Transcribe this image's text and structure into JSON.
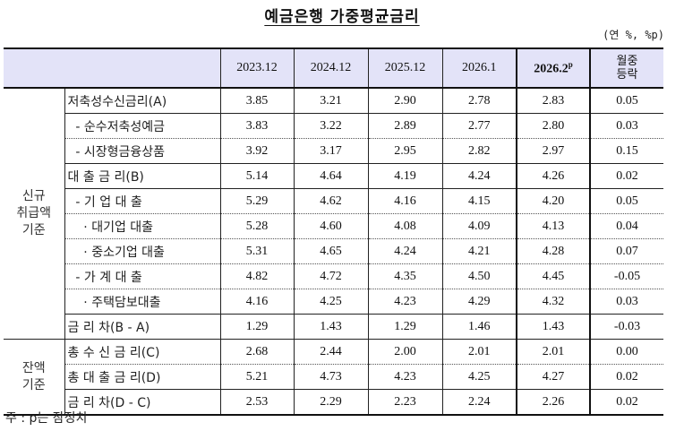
{
  "title": "예금은행 가중평균금리",
  "unit": "(연 %, %p)",
  "header": {
    "columns": [
      "2023.12",
      "2024.12",
      "2025.12",
      "2026.1",
      "2026.2",
      "월중\n등락"
    ],
    "col_2026_2_base": "2026.2",
    "col_2026_2_sup": "p",
    "change_line1": "월중",
    "change_line2": "등락"
  },
  "groups": {
    "new": {
      "line1": "신규",
      "line2": "취급액",
      "line3": "기준"
    },
    "balance": {
      "line1": "잔액",
      "line2": "기준"
    }
  },
  "rows": [
    {
      "label": "저축성수신금리(A)",
      "values": [
        "3.85",
        "3.21",
        "2.90",
        "2.78",
        "2.83",
        "0.05"
      ]
    },
    {
      "label": "  - 순수저축성예금",
      "values": [
        "3.83",
        "3.22",
        "2.89",
        "2.77",
        "2.80",
        "0.03"
      ]
    },
    {
      "label": "  - 시장형금융상품",
      "values": [
        "3.92",
        "3.17",
        "2.95",
        "2.82",
        "2.97",
        "0.15"
      ]
    },
    {
      "label": "대 출 금 리(B)",
      "values": [
        "5.14",
        "4.64",
        "4.19",
        "4.24",
        "4.26",
        "0.02"
      ]
    },
    {
      "label": "  - 기 업 대 출",
      "values": [
        "5.29",
        "4.62",
        "4.16",
        "4.15",
        "4.20",
        "0.05"
      ]
    },
    {
      "label": "    · 대기업 대출",
      "values": [
        "5.28",
        "4.60",
        "4.08",
        "4.09",
        "4.13",
        "0.04"
      ]
    },
    {
      "label": "    · 중소기업 대출",
      "values": [
        "5.31",
        "4.65",
        "4.24",
        "4.21",
        "4.28",
        "0.07"
      ]
    },
    {
      "label": "  - 가 계 대 출",
      "values": [
        "4.82",
        "4.72",
        "4.35",
        "4.50",
        "4.45",
        "-0.05"
      ]
    },
    {
      "label": "    · 주택담보대출",
      "values": [
        "4.16",
        "4.25",
        "4.23",
        "4.29",
        "4.32",
        "0.03"
      ]
    },
    {
      "label": "금 리 차(B - A)",
      "values": [
        "1.29",
        "1.43",
        "1.29",
        "1.46",
        "1.43",
        "-0.03"
      ]
    },
    {
      "label": "총 수 신 금 리(C)",
      "values": [
        "2.68",
        "2.44",
        "2.00",
        "2.01",
        "2.01",
        "0.00"
      ]
    },
    {
      "label": "총 대 출 금 리(D)",
      "values": [
        "5.21",
        "4.73",
        "4.23",
        "4.25",
        "4.27",
        "0.02"
      ]
    },
    {
      "label": "금 리 차(D - C)",
      "values": [
        "2.53",
        "2.29",
        "2.23",
        "2.24",
        "2.26",
        "0.02"
      ]
    }
  ],
  "note": "주 : p는 잠정치"
}
